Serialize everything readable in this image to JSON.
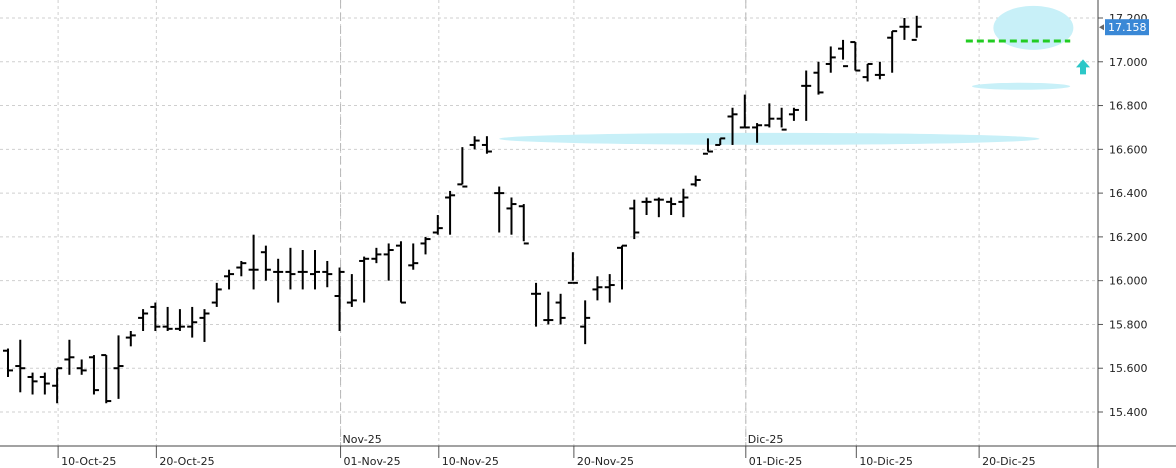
{
  "chart_data": {
    "type": "ohlc",
    "x_tick_labels": [
      "10-Oct-25",
      "20-Oct-25",
      "01-Nov-25",
      "10-Nov-25",
      "20-Nov-25",
      "01-Dic-25",
      "10-Dic-25",
      "20-Dic-25"
    ],
    "x_tick_index": [
      4,
      12,
      27,
      35,
      46,
      60,
      69,
      79
    ],
    "month_labels": [
      {
        "label": "Nov-25",
        "index": 27
      },
      {
        "label": "Dic-25",
        "index": 60
      }
    ],
    "y_ticks": [
      15400,
      15600,
      15800,
      16000,
      16200,
      16400,
      16600,
      16800,
      17000,
      17200
    ],
    "y_tick_labels": [
      "15.400",
      "15.600",
      "15.800",
      "16.000",
      "16.200",
      "16.400",
      "16.600",
      "16.800",
      "17.000",
      "17.200"
    ],
    "ylim": [
      15260,
      17290
    ],
    "last_price_label": "17.158",
    "last_price": 17158,
    "series": [
      {
        "values": [
          [
            15680,
            15690,
            15560,
            15590
          ],
          [
            15610,
            15730,
            15490,
            15600
          ],
          [
            15560,
            15580,
            15480,
            15540
          ],
          [
            15560,
            15580,
            15480,
            15530
          ],
          [
            15520,
            15600,
            15440,
            15600
          ],
          [
            15640,
            15730,
            15570,
            15650
          ],
          [
            15600,
            15640,
            15570,
            15590
          ],
          [
            15650,
            15660,
            15480,
            15500
          ],
          [
            15660,
            15660,
            15440,
            15450
          ],
          [
            15600,
            15750,
            15460,
            15610
          ],
          [
            15740,
            15770,
            15700,
            15750
          ],
          [
            15830,
            15870,
            15770,
            15850
          ],
          [
            15880,
            15900,
            15770,
            15790
          ],
          [
            15790,
            15880,
            15770,
            15780
          ],
          [
            15780,
            15870,
            15770,
            15790
          ],
          [
            15790,
            15880,
            15740,
            15810
          ],
          [
            15830,
            15870,
            15720,
            15850
          ],
          [
            15900,
            15990,
            15880,
            15960
          ],
          [
            16020,
            16050,
            15960,
            16030
          ],
          [
            16060,
            16090,
            16020,
            16080
          ],
          [
            16050,
            16210,
            15960,
            16050
          ],
          [
            16130,
            16160,
            16000,
            16050
          ],
          [
            16040,
            16100,
            15900,
            16040
          ],
          [
            16040,
            16150,
            15960,
            16030
          ],
          [
            16040,
            16140,
            15960,
            16040
          ],
          [
            16030,
            16140,
            15960,
            16040
          ],
          [
            16040,
            16090,
            15970,
            16030
          ],
          [
            15930,
            16060,
            15770,
            16040
          ],
          [
            15900,
            16030,
            15880,
            15910
          ],
          [
            16090,
            16110,
            15900,
            16100
          ],
          [
            16100,
            16150,
            16080,
            16120
          ],
          [
            16120,
            16170,
            16000,
            16140
          ],
          [
            16160,
            16180,
            15900,
            15900
          ],
          [
            16070,
            16170,
            16050,
            16080
          ],
          [
            16170,
            16200,
            16120,
            16190
          ],
          [
            16220,
            16300,
            16210,
            16240
          ],
          [
            16380,
            16410,
            16210,
            16390
          ],
          [
            16440,
            16610,
            16440,
            16430
          ],
          [
            16620,
            16660,
            16600,
            16640
          ],
          [
            16620,
            16660,
            16580,
            16590
          ],
          [
            16400,
            16430,
            16220,
            16400
          ],
          [
            16330,
            16380,
            16210,
            16350
          ],
          [
            16340,
            16350,
            16180,
            16170
          ],
          [
            15940,
            15990,
            15790,
            15940
          ],
          [
            15820,
            15950,
            15800,
            15820
          ],
          [
            15900,
            15940,
            15800,
            15830
          ],
          [
            15990,
            16130,
            16000,
            15990
          ],
          [
            15790,
            15910,
            15710,
            15830
          ],
          [
            15960,
            16020,
            15910,
            15970
          ],
          [
            15970,
            16030,
            15900,
            15980
          ],
          [
            16150,
            16160,
            15960,
            16160
          ],
          [
            16330,
            16370,
            16190,
            16220
          ],
          [
            16360,
            16380,
            16300,
            16360
          ],
          [
            16370,
            16380,
            16290,
            16370
          ],
          [
            16360,
            16380,
            16300,
            16350
          ],
          [
            16360,
            16420,
            16290,
            16380
          ],
          [
            16440,
            16480,
            16430,
            16460
          ],
          [
            16580,
            16650,
            16590,
            16590
          ],
          [
            16620,
            16650,
            16620,
            16650
          ],
          [
            16750,
            16790,
            16620,
            16760
          ],
          [
            16700,
            16850,
            16700,
            16700
          ],
          [
            16700,
            16720,
            16630,
            16710
          ],
          [
            16710,
            16810,
            16700,
            16740
          ],
          [
            16740,
            16790,
            16700,
            16690
          ],
          [
            16760,
            16790,
            16730,
            16780
          ],
          [
            16890,
            16960,
            16730,
            16890
          ],
          [
            16950,
            17000,
            16850,
            16860
          ],
          [
            16990,
            17070,
            16950,
            17020
          ],
          [
            17060,
            17100,
            17010,
            16980
          ],
          [
            17090,
            17090,
            16960,
            16960
          ],
          [
            16930,
            16990,
            16910,
            16990
          ],
          [
            16940,
            17000,
            16920,
            16940
          ],
          [
            17110,
            17140,
            16950,
            17140
          ],
          [
            17160,
            17200,
            17100,
            17160
          ],
          [
            17100,
            17210,
            17110,
            17160
          ]
        ]
      }
    ]
  },
  "colors": {
    "bar": "#000000",
    "highlight": "#c8f0f8",
    "dashed_line": "#22cc22",
    "arrow": "#2cc7c7",
    "last_box": "#3a88d6",
    "grid": "#cfcfcf"
  }
}
